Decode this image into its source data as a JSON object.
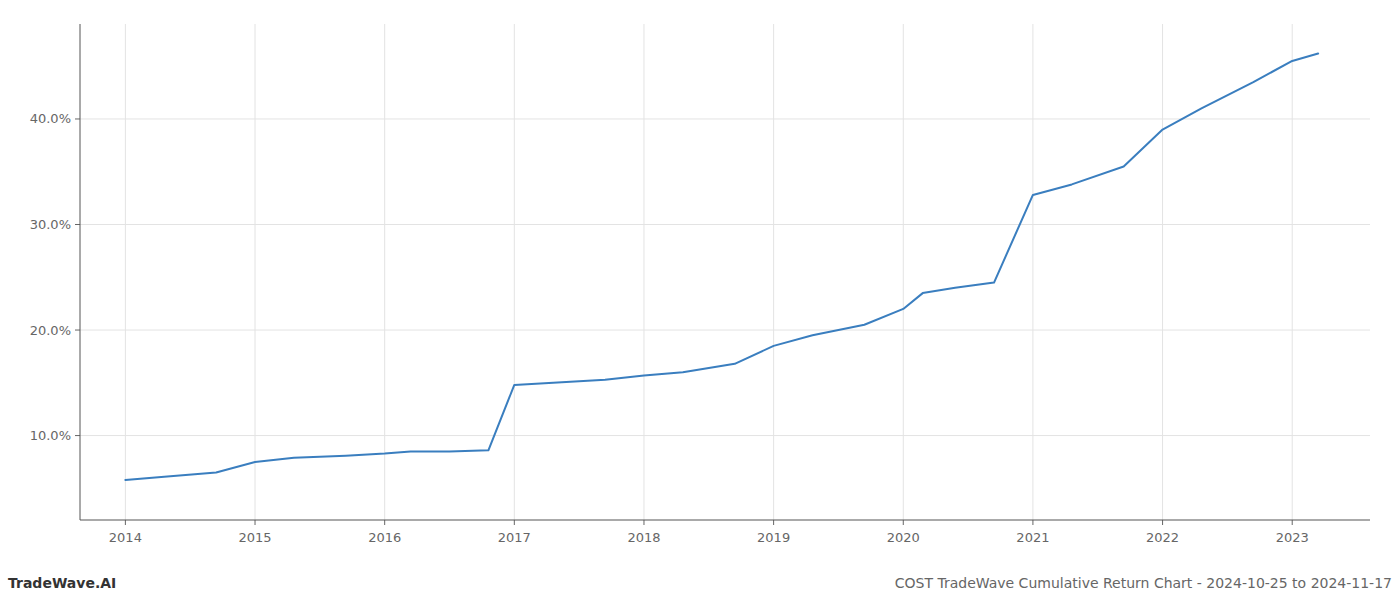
{
  "chart_data": {
    "type": "line",
    "title": "COST TradeWave Cumulative Return Chart - 2024-10-25 to 2024-11-17",
    "annotations": [
      "TradeWave.AI"
    ],
    "x": [
      2014,
      2014.3,
      2014.7,
      2015,
      2015.3,
      2015.7,
      2016,
      2016.2,
      2016.5,
      2016.8,
      2017,
      2017.3,
      2017.7,
      2018,
      2018.3,
      2018.7,
      2019,
      2019.3,
      2019.7,
      2020,
      2020.15,
      2020.4,
      2020.7,
      2021,
      2021.3,
      2021.7,
      2022,
      2022.3,
      2022.7,
      2023,
      2023.2
    ],
    "values": [
      5.8,
      6.1,
      6.5,
      7.5,
      7.9,
      8.1,
      8.3,
      8.5,
      8.5,
      8.6,
      14.8,
      15.0,
      15.3,
      15.7,
      16.0,
      16.8,
      18.5,
      19.5,
      20.5,
      22.0,
      23.5,
      24.0,
      24.5,
      32.8,
      33.8,
      35.5,
      39.0,
      41.0,
      43.5,
      45.5,
      46.2
    ],
    "color": "#3a7ebf",
    "xlim": [
      2013.65,
      2023.6
    ],
    "ylim": [
      2.0,
      49.0
    ],
    "xticks": [
      2014,
      2015,
      2016,
      2017,
      2018,
      2019,
      2020,
      2021,
      2022,
      2023
    ],
    "yticks": [
      {
        "value": 10.0,
        "label": "10.0%"
      },
      {
        "value": 20.0,
        "label": "20.0%"
      },
      {
        "value": 30.0,
        "label": "30.0%"
      },
      {
        "value": 40.0,
        "label": "40.0%"
      }
    ],
    "grid": true
  }
}
